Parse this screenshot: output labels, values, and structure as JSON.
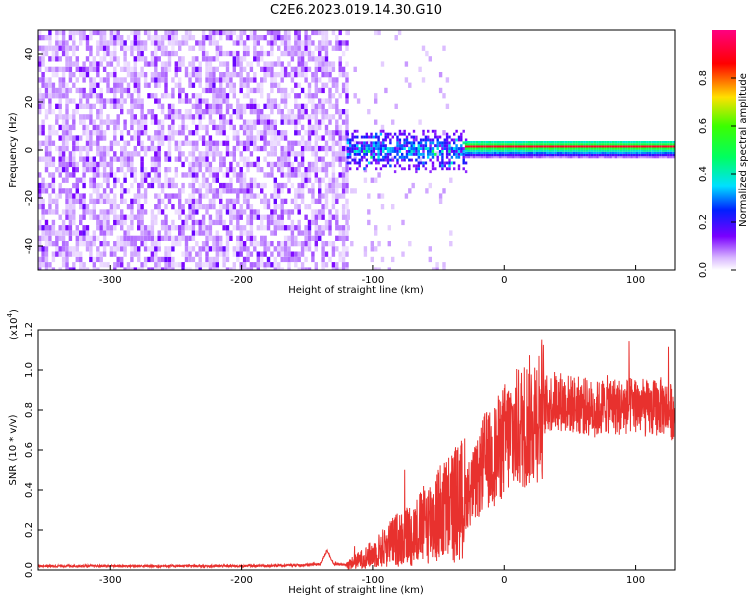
{
  "title": "C2E6.2023.019.14.30.G10",
  "chart_data": [
    {
      "type": "heatmap",
      "xlabel": "Height of straight line (km)",
      "ylabel": "Frequency (Hz)",
      "xlim": [
        -355,
        130
      ],
      "ylim": [
        -50,
        50
      ],
      "xticks": [
        -300,
        -200,
        -100,
        0,
        100
      ],
      "xtick_labels": [
        "-300",
        "-200",
        "-100",
        "0",
        "100"
      ],
      "yticks": [
        -40,
        -20,
        0,
        20,
        40
      ],
      "ytick_labels": [
        "-40",
        "-20",
        "0",
        "20",
        "40"
      ],
      "colorbar": {
        "label": "Normalized spectral amplitude",
        "range": [
          0,
          1
        ],
        "ticks": [
          0,
          0.2,
          0.4,
          0.6,
          0.8
        ],
        "tick_labels": [
          "0.0",
          "0.2",
          "0.4",
          "0.6",
          "0.8"
        ]
      },
      "regions": [
        {
          "x": [
            -355,
            -120
          ],
          "freq": [
            -50,
            50
          ],
          "amplitude": [
            0.0,
            0.25
          ],
          "pattern": "broadband noise"
        },
        {
          "x": [
            -120,
            -30
          ],
          "freq": [
            -8,
            8
          ],
          "amplitude": [
            0.2,
            0.45
          ],
          "pattern": "scattered echo"
        },
        {
          "x": [
            -30,
            130
          ],
          "freq": [
            -3,
            4
          ],
          "amplitude": [
            0.35,
            0.85
          ],
          "pattern": "narrow band near 2 Hz"
        }
      ],
      "grid": false
    },
    {
      "type": "line",
      "xlabel": "Height of straight line (km)",
      "ylabel": "SNR (10 * v/v)",
      "y_multiplier_label": "(x10",
      "y_multiplier_exp": "4",
      "xlim": [
        -355,
        130
      ],
      "ylim": [
        0,
        12000
      ],
      "xticks": [
        -300,
        -200,
        -100,
        0,
        100
      ],
      "xtick_labels": [
        "-300",
        "-200",
        "-100",
        "0",
        "100"
      ],
      "yticks": [
        0,
        2000,
        4000,
        6000,
        8000,
        10000,
        12000
      ],
      "ytick_labels": [
        "0.0",
        "0.2",
        "0.4",
        "0.6",
        "0.8",
        "1.0",
        "1.2"
      ],
      "series": [
        {
          "color": "#e8312e",
          "x": [
            -355,
            -300,
            -250,
            -200,
            -150,
            -140,
            -135,
            -130,
            -120,
            -110,
            -100,
            -90,
            -80,
            -70,
            -60,
            -50,
            -40,
            -30,
            -20,
            -15,
            -10,
            -5,
            0,
            5,
            10,
            20,
            30,
            40,
            50,
            60,
            70,
            80,
            90,
            100,
            110,
            120,
            130
          ],
          "y": [
            200,
            200,
            200,
            200,
            250,
            300,
            1000,
            300,
            250,
            500,
            800,
            1200,
            1600,
            1800,
            2300,
            2800,
            3200,
            3600,
            4500,
            5500,
            5500,
            6000,
            6500,
            6800,
            7000,
            7500,
            8200,
            8500,
            8300,
            8200,
            8000,
            8300,
            8100,
            8300,
            8000,
            8200,
            7800
          ]
        }
      ],
      "grid": false
    }
  ]
}
